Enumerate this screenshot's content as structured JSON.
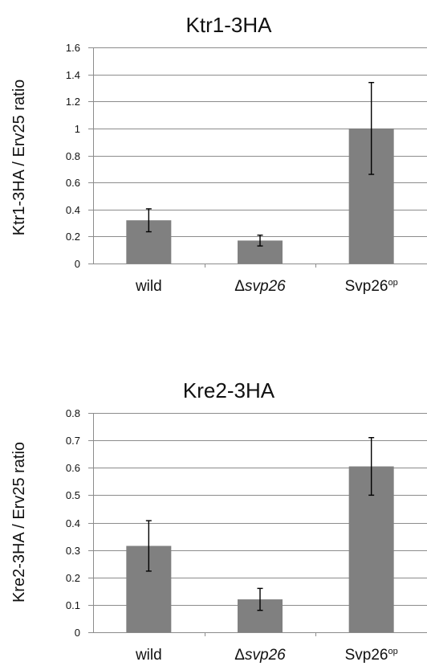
{
  "chart_data": [
    {
      "type": "bar",
      "title": "Ktr1-3HA",
      "ylabel": "Ktr1-3HA / Erv25 ratio",
      "xlabel": "",
      "ylim": [
        0,
        1.6
      ],
      "yticks": [
        "0",
        "0.2",
        "0.4",
        "0.6",
        "0.8",
        "1",
        "1.2",
        "1.4",
        "1.6"
      ],
      "grid": true,
      "legend": "none",
      "bar_color": "#808080",
      "categories": [
        {
          "prefix": "",
          "main": "wild",
          "italic": false,
          "sup": ""
        },
        {
          "prefix": "Δ",
          "main": "svp26",
          "italic": true,
          "sup": ""
        },
        {
          "prefix": "",
          "main": "Svp26",
          "italic": false,
          "sup": "op"
        }
      ],
      "values": [
        0.32,
        0.17,
        1.0
      ],
      "errors": [
        0.085,
        0.04,
        0.34
      ]
    },
    {
      "type": "bar",
      "title": "Kre2-3HA",
      "ylabel": "Kre2-3HA / Erv25 ratio",
      "xlabel": "",
      "ylim": [
        0,
        0.8
      ],
      "yticks": [
        "0",
        "0.1",
        "0.2",
        "0.3",
        "0.4",
        "0.5",
        "0.6",
        "0.7",
        "0.8"
      ],
      "grid": true,
      "legend": "none",
      "bar_color": "#808080",
      "categories": [
        {
          "prefix": "",
          "main": "wild",
          "italic": false,
          "sup": ""
        },
        {
          "prefix": "Δ",
          "main": "svp26",
          "italic": true,
          "sup": ""
        },
        {
          "prefix": "",
          "main": "Svp26",
          "italic": false,
          "sup": "op"
        }
      ],
      "values": [
        0.315,
        0.12,
        0.605
      ],
      "errors": [
        0.092,
        0.04,
        0.105
      ]
    }
  ]
}
